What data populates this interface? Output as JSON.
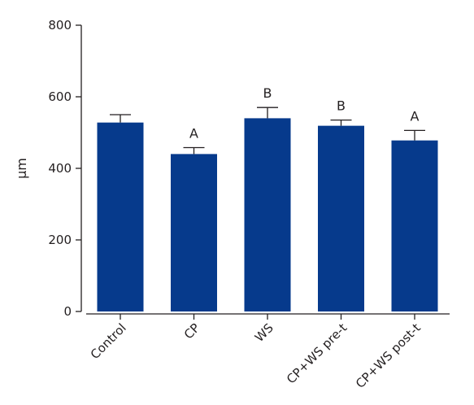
{
  "chart_data": {
    "type": "bar",
    "title": "",
    "xlabel": "",
    "ylabel": "μm",
    "ylim": [
      0,
      800
    ],
    "yticks": [
      0,
      200,
      400,
      600,
      800
    ],
    "ytick_labels": [
      "0",
      "200",
      "400",
      "600",
      "800"
    ],
    "grid": false,
    "legend": "none",
    "categories": [
      "Control",
      "CP",
      "WS",
      "CP+WS pre-t",
      "CP+WS post-t"
    ],
    "values": [
      528,
      440,
      540,
      519,
      478
    ],
    "errors": [
      22,
      18,
      30,
      16,
      28
    ],
    "significance_labels": [
      "",
      "A",
      "B",
      "B",
      "A"
    ],
    "bar_color": "#063a8c"
  }
}
